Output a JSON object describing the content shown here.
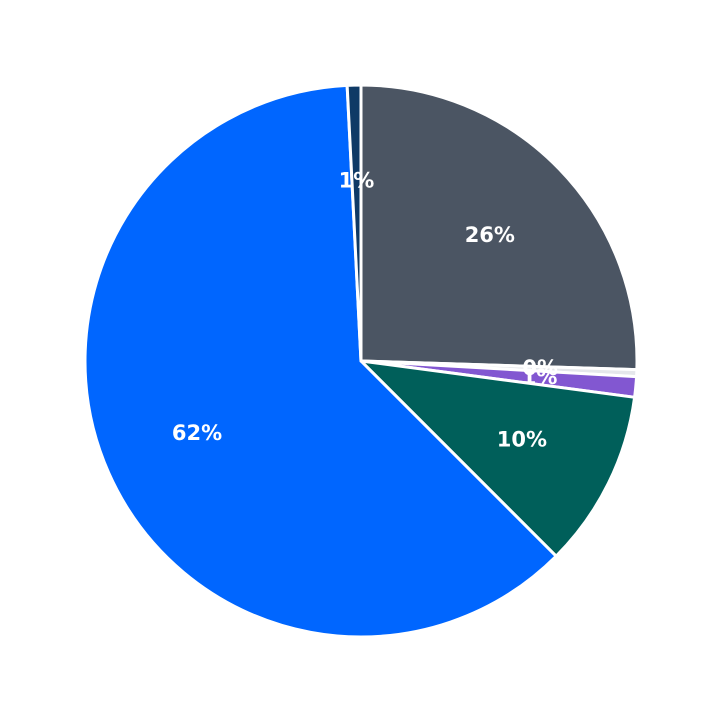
{
  "chart_data": {
    "type": "pie",
    "categories": [
      null,
      null,
      null,
      null,
      null,
      null
    ],
    "values": [
      25.5,
      0.4,
      1.2,
      10.4,
      61.7,
      0.8
    ],
    "value_labels": [
      "26%",
      "0%",
      "1%",
      "10%",
      "62%",
      "1%"
    ],
    "colors": [
      "#4b5563",
      "#e5e7eb",
      "#8257d1",
      "#005f5a",
      "#0066ff",
      "#0f3a66"
    ]
  }
}
